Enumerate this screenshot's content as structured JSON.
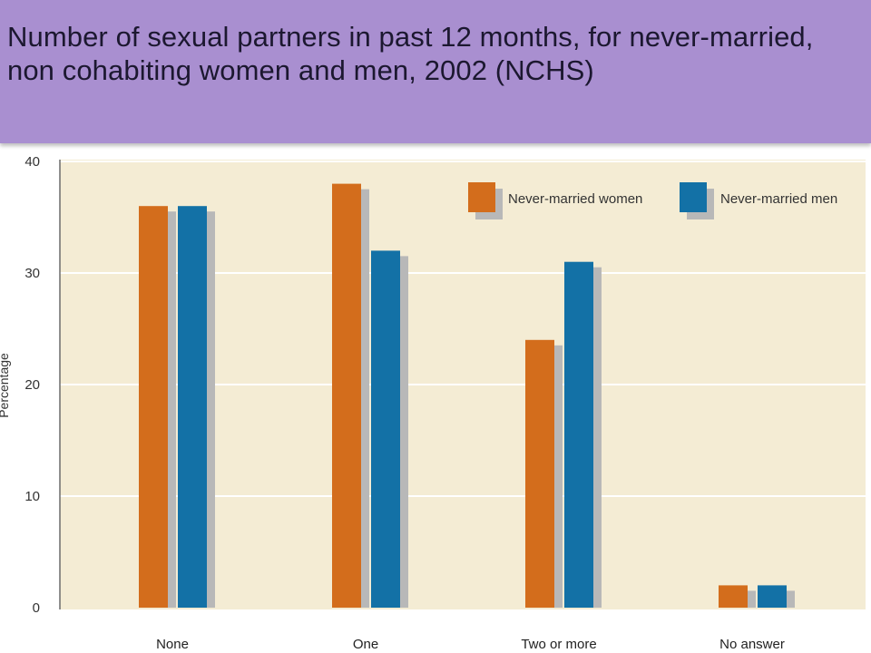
{
  "colors": {
    "title_band": "#a98fd0",
    "plot_background": "#f4ecd4",
    "gridline": "#ffffff",
    "shadow": "#b8b8b8",
    "women": "#d36d1c",
    "men": "#1371a6"
  },
  "chart_data": {
    "type": "bar",
    "title": "Number of sexual partners in past 12 months, for never-married, non cohabiting women and men, 2002 (NCHS)",
    "ylabel": "Percentage",
    "xlabel": "",
    "categories": [
      "None",
      "One",
      "Two or more",
      "No answer"
    ],
    "series": [
      {
        "name": "Never-married women",
        "color": "#d36d1c",
        "values": [
          36,
          38,
          24,
          2
        ]
      },
      {
        "name": "Never-married men",
        "color": "#1371a6",
        "values": [
          36,
          32,
          31,
          2
        ]
      }
    ],
    "ylim": [
      0,
      40
    ],
    "yticks": [
      0,
      10,
      20,
      30,
      40
    ],
    "grid": true,
    "legend_position": "top-right"
  }
}
